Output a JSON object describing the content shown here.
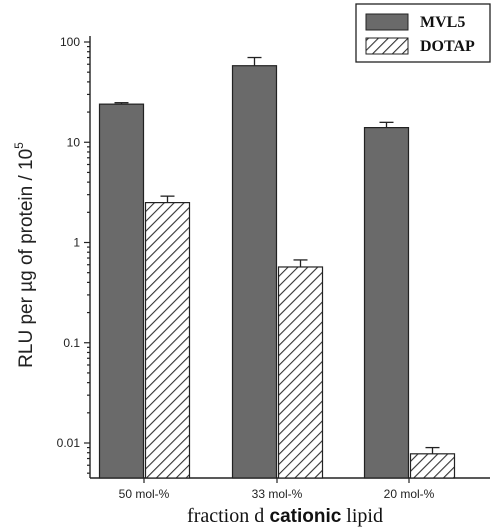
{
  "chart_data": {
    "type": "bar",
    "scale": "log",
    "ylim": [
      0.005,
      120
    ],
    "categories": [
      "50 mol-%",
      "33 mol-%",
      "20 mol-%"
    ],
    "series": [
      {
        "name": "MVL5",
        "values": [
          24,
          58,
          14
        ],
        "errors": [
          0.8,
          12,
          1.8
        ],
        "color": "#6a6a6a",
        "pattern": "solid"
      },
      {
        "name": "DOTAP",
        "values": [
          2.5,
          0.57,
          0.0078
        ],
        "errors": [
          0.4,
          0.1,
          0.0012
        ],
        "color": "#ffffff",
        "pattern": "hatch"
      }
    ],
    "y_ticks": [
      {
        "value": 100,
        "label": "100"
      },
      {
        "value": 10,
        "label": "10"
      },
      {
        "value": 1,
        "label": "1"
      },
      {
        "value": 0.1,
        "label": "0.1"
      },
      {
        "value": 0.01,
        "label": "0.01"
      }
    ],
    "ylabel_main": "RLU per µg of protein / 10",
    "ylabel_sup": "5",
    "xlabel": "fraction of cationic lipid",
    "legend_position": "top-right",
    "grid": false
  },
  "xlabel_parts": {
    "part1": "fraction ",
    "part2": "d",
    "part3": " cationic",
    "part4": " lipid"
  }
}
